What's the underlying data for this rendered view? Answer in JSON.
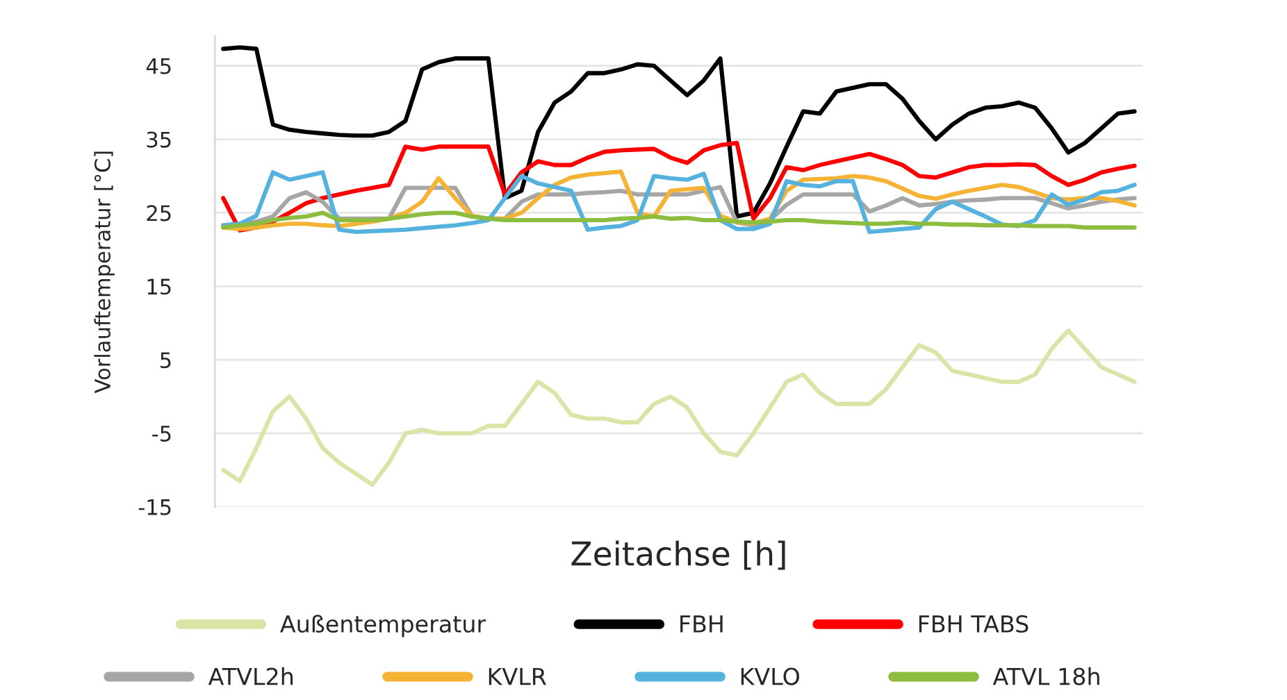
{
  "chart_data": {
    "type": "line",
    "ylabel": "Vorlauftemperatur [°C]",
    "xlabel": "Zeitachse [h]",
    "categories": [
      null,
      null,
      null,
      null,
      null,
      null,
      null,
      null,
      null,
      null,
      null,
      null,
      null,
      null,
      null,
      null,
      null,
      null,
      null,
      null,
      null,
      null,
      null,
      null,
      null,
      null,
      null,
      null,
      null,
      null,
      null,
      null,
      null,
      null,
      null,
      null,
      null,
      null,
      null,
      null,
      null,
      null,
      null,
      null,
      null,
      null,
      null,
      null,
      null,
      null,
      null,
      null,
      null,
      null,
      null,
      null
    ],
    "ylim": [
      -15,
      49
    ],
    "yticks": [
      -15,
      -5,
      5,
      15,
      25,
      35,
      45
    ],
    "grid": "y",
    "legend": "bottom",
    "marker": "none",
    "line_style": "solid",
    "series": [
      {
        "name": "Außentemperatur",
        "color": "#d9e4a6",
        "values": [
          -10,
          -11.5,
          -7,
          -2,
          0,
          -3,
          -7,
          -9,
          -10.5,
          -12,
          -9,
          -5,
          -4.5,
          -5,
          -5,
          -5,
          -4,
          -4,
          -1,
          2,
          0.5,
          -2.5,
          -3,
          -3,
          -3.5,
          -3.5,
          -1,
          0,
          -1.5,
          -5,
          -7.5,
          -8,
          -5,
          -1.5,
          2,
          3,
          0.5,
          -1,
          -1,
          -1,
          1,
          4,
          7,
          6,
          3.5,
          3,
          2.5,
          2,
          2,
          3,
          6.5,
          9,
          6.5,
          4,
          3,
          2
        ]
      },
      {
        "name": "FBH",
        "color": "#000000",
        "values": [
          47.3,
          47.5,
          47.3,
          37,
          36.3,
          36,
          35.8,
          35.6,
          35.5,
          35.5,
          36,
          37.5,
          44.5,
          45.5,
          46,
          46,
          46,
          27,
          28,
          36,
          40,
          41.5,
          44,
          44,
          44.5,
          45.2,
          45,
          43,
          41,
          43,
          46,
          24.5,
          25,
          29,
          34,
          38.8,
          38.5,
          41.5,
          42,
          42.5,
          42.5,
          40.5,
          37.5,
          35,
          37,
          38.5,
          39.3,
          39.5,
          40,
          39.3,
          36.5,
          33.2,
          34.5,
          36.5,
          38.5,
          38.8
        ]
      },
      {
        "name": "FBH TABS",
        "color": "#ff0000",
        "values": [
          27,
          22.6,
          23,
          23.8,
          25,
          26.3,
          27,
          27.5,
          28,
          28.4,
          28.8,
          34,
          33.6,
          34,
          34,
          34,
          34,
          27.5,
          30.5,
          32,
          31.5,
          31.5,
          32.5,
          33.3,
          33.5,
          33.6,
          33.7,
          32.5,
          31.8,
          33.5,
          34.2,
          34.5,
          24.2,
          27,
          31.2,
          30.8,
          31.5,
          32,
          32.5,
          33,
          32.3,
          31.5,
          30,
          29.8,
          30.5,
          31.2,
          31.5,
          31.5,
          31.6,
          31.5,
          30,
          28.8,
          29.5,
          30.5,
          31,
          31.4
        ]
      },
      {
        "name": "ATVL2h",
        "color": "#a6a6a6",
        "values": [
          23.3,
          23.5,
          23.8,
          24.5,
          27,
          27.8,
          26.5,
          24.2,
          24.2,
          24.2,
          24.2,
          28.4,
          28.4,
          28.4,
          28.4,
          24.6,
          24.2,
          24.2,
          26.5,
          27.5,
          27.5,
          27.5,
          27.7,
          27.8,
          28,
          27.5,
          27.5,
          27.5,
          27.5,
          28,
          28.5,
          23.7,
          23.3,
          24,
          26.1,
          27.5,
          27.5,
          27.5,
          27.5,
          25.2,
          26,
          27,
          26,
          26.2,
          26.5,
          26.7,
          26.8,
          27,
          27,
          27,
          26.3,
          25.6,
          26,
          26.5,
          26.8,
          27
        ]
      },
      {
        "name": "KVLR",
        "color": "#f5b335",
        "values": [
          23,
          22.8,
          23,
          23.3,
          23.5,
          23.5,
          23.3,
          23.2,
          23.5,
          23.8,
          24.2,
          25,
          26.5,
          29.7,
          27,
          24.6,
          24.2,
          24.2,
          25,
          27,
          28.8,
          29.8,
          30.2,
          30.4,
          30.6,
          25,
          24.5,
          28,
          28.2,
          28.4,
          24.6,
          23.7,
          23.6,
          24.2,
          28,
          29.5,
          29.6,
          29.7,
          30,
          29.8,
          29.3,
          28.3,
          27.3,
          26.9,
          27.5,
          28,
          28.4,
          28.8,
          28.5,
          27.8,
          27,
          26.8,
          27,
          27,
          26.6,
          26
        ]
      },
      {
        "name": "KVLO",
        "color": "#55b2de",
        "values": [
          23.3,
          23.5,
          24.6,
          30.5,
          29.5,
          30,
          30.5,
          22.7,
          22.4,
          22.5,
          22.6,
          22.7,
          22.9,
          23.1,
          23.3,
          23.6,
          24,
          27,
          30,
          29,
          28.5,
          28,
          22.7,
          23,
          23.2,
          24,
          30,
          29.7,
          29.5,
          30.3,
          24,
          22.8,
          22.8,
          23.5,
          29.3,
          28.8,
          28.6,
          29.3,
          29.3,
          22.4,
          22.6,
          22.8,
          23,
          25.5,
          26.5,
          25.5,
          24.5,
          23.4,
          23.2,
          24,
          27.5,
          26.1,
          26.8,
          27.8,
          28,
          28.8
        ]
      },
      {
        "name": "ATVL 18h",
        "color": "#8cbd3f",
        "values": [
          23,
          23.3,
          23.5,
          24,
          24.3,
          24.5,
          25,
          24,
          24,
          24,
          24.2,
          24.5,
          24.8,
          25,
          25,
          24.5,
          24.2,
          24,
          24,
          24,
          24,
          24,
          24,
          24,
          24.2,
          24.3,
          24.5,
          24.2,
          24.3,
          24,
          24,
          23.8,
          23.7,
          23.8,
          24,
          24,
          23.8,
          23.7,
          23.6,
          23.5,
          23.5,
          23.7,
          23.5,
          23.5,
          23.4,
          23.4,
          23.3,
          23.3,
          23.3,
          23.2,
          23.2,
          23.2,
          23,
          23,
          23,
          23
        ]
      }
    ]
  }
}
